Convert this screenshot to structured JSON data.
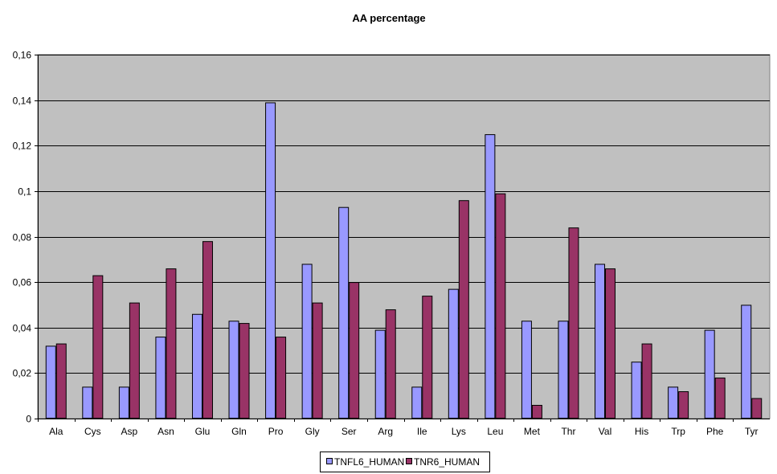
{
  "chart_data": {
    "type": "bar",
    "title": "AA percentage",
    "xlabel": "",
    "ylabel": "",
    "categories": [
      "Ala",
      "Cys",
      "Asp",
      "Asn",
      "Glu",
      "Gln",
      "Pro",
      "Gly",
      "Ser",
      "Arg",
      "Ile",
      "Lys",
      "Leu",
      "Met",
      "Thr",
      "Val",
      "His",
      "Trp",
      "Phe",
      "Tyr"
    ],
    "series": [
      {
        "name": "TNFL6_HUMAN",
        "color": "#9999ff",
        "values": [
          0.032,
          0.014,
          0.014,
          0.036,
          0.046,
          0.043,
          0.139,
          0.068,
          0.093,
          0.039,
          0.014,
          0.057,
          0.125,
          0.043,
          0.043,
          0.068,
          0.025,
          0.014,
          0.039,
          0.05
        ]
      },
      {
        "name": "TNR6_HUMAN",
        "color": "#993366",
        "values": [
          0.033,
          0.063,
          0.051,
          0.066,
          0.078,
          0.042,
          0.036,
          0.051,
          0.06,
          0.048,
          0.054,
          0.096,
          0.099,
          0.006,
          0.084,
          0.066,
          0.033,
          0.012,
          0.018,
          0.009
        ]
      }
    ],
    "ylim": [
      0,
      0.16
    ],
    "yticks": [
      "0",
      "0,02",
      "0,04",
      "0,06",
      "0,08",
      "0,1",
      "0,12",
      "0,14",
      "0,16"
    ],
    "yticks_values": [
      0,
      0.02,
      0.04,
      0.06,
      0.08,
      0.1,
      0.12,
      0.14,
      0.16
    ],
    "grid": true,
    "plot_background": "#c0c0c0",
    "legend_position": "bottom-center"
  }
}
